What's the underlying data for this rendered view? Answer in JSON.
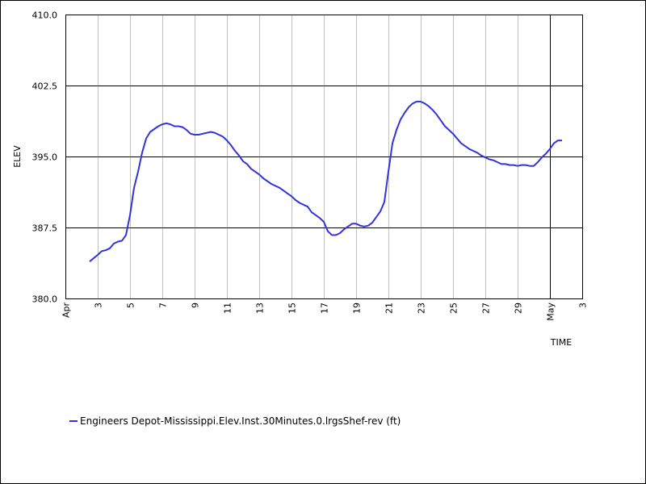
{
  "chart_data": {
    "type": "line",
    "xlabel": "TIME",
    "ylabel": "ELEV",
    "ylim": [
      380.0,
      410.0
    ],
    "xlim": [
      "2024-04-01",
      "2024-05-03"
    ],
    "y_ticks": [
      "380.0",
      "387.5",
      "395.0",
      "402.5",
      "410.0"
    ],
    "x_ticks": [
      {
        "date": "2024-04-01",
        "label": "Apr",
        "major": true
      },
      {
        "date": "2024-04-03",
        "label": "3",
        "major": false
      },
      {
        "date": "2024-04-05",
        "label": "5",
        "major": false
      },
      {
        "date": "2024-04-07",
        "label": "7",
        "major": false
      },
      {
        "date": "2024-04-09",
        "label": "9",
        "major": false
      },
      {
        "date": "2024-04-11",
        "label": "11",
        "major": false
      },
      {
        "date": "2024-04-13",
        "label": "13",
        "major": false
      },
      {
        "date": "2024-04-15",
        "label": "15",
        "major": false
      },
      {
        "date": "2024-04-17",
        "label": "17",
        "major": false
      },
      {
        "date": "2024-04-19",
        "label": "19",
        "major": false
      },
      {
        "date": "2024-04-21",
        "label": "21",
        "major": false
      },
      {
        "date": "2024-04-23",
        "label": "23",
        "major": false
      },
      {
        "date": "2024-04-25",
        "label": "25",
        "major": false
      },
      {
        "date": "2024-04-27",
        "label": "27",
        "major": false
      },
      {
        "date": "2024-04-29",
        "label": "29",
        "major": false
      },
      {
        "date": "2024-05-01",
        "label": "May",
        "major": true
      },
      {
        "date": "2024-05-03",
        "label": "3",
        "major": false
      }
    ],
    "grid": true,
    "legend_position": "bottom-left",
    "series": [
      {
        "name": "Engineers Depot-Mississippi.Elev.Inst.30Minutes.0.lrgsShef-rev (ft)",
        "color": "#3333dd",
        "points": [
          [
            "2024-04-02T12:00",
            383.9
          ],
          [
            "2024-04-03T00:00",
            384.6
          ],
          [
            "2024-04-03T06:00",
            385.0
          ],
          [
            "2024-04-03T12:00",
            385.1
          ],
          [
            "2024-04-03T18:00",
            385.3
          ],
          [
            "2024-04-04T00:00",
            385.8
          ],
          [
            "2024-04-04T06:00",
            386.0
          ],
          [
            "2024-04-04T12:00",
            386.1
          ],
          [
            "2024-04-04T18:00",
            386.7
          ],
          [
            "2024-04-05T00:00",
            388.8
          ],
          [
            "2024-04-05T06:00",
            391.7
          ],
          [
            "2024-04-05T12:00",
            393.4
          ],
          [
            "2024-04-05T18:00",
            395.4
          ],
          [
            "2024-04-06T00:00",
            396.9
          ],
          [
            "2024-04-06T06:00",
            397.6
          ],
          [
            "2024-04-06T12:00",
            397.9
          ],
          [
            "2024-04-06T18:00",
            398.2
          ],
          [
            "2024-04-07T00:00",
            398.4
          ],
          [
            "2024-04-07T06:00",
            398.5
          ],
          [
            "2024-04-07T12:00",
            398.4
          ],
          [
            "2024-04-07T18:00",
            398.2
          ],
          [
            "2024-04-08T00:00",
            398.2
          ],
          [
            "2024-04-08T06:00",
            398.1
          ],
          [
            "2024-04-08T12:00",
            397.8
          ],
          [
            "2024-04-08T18:00",
            397.4
          ],
          [
            "2024-04-09T00:00",
            397.3
          ],
          [
            "2024-04-09T06:00",
            397.3
          ],
          [
            "2024-04-09T12:00",
            397.4
          ],
          [
            "2024-04-09T18:00",
            397.5
          ],
          [
            "2024-04-10T00:00",
            397.6
          ],
          [
            "2024-04-10T06:00",
            397.5
          ],
          [
            "2024-04-10T12:00",
            397.3
          ],
          [
            "2024-04-10T18:00",
            397.1
          ],
          [
            "2024-04-11T00:00",
            396.7
          ],
          [
            "2024-04-11T06:00",
            396.2
          ],
          [
            "2024-04-11T12:00",
            395.6
          ],
          [
            "2024-04-11T18:00",
            395.1
          ],
          [
            "2024-04-12T00:00",
            394.5
          ],
          [
            "2024-04-12T06:00",
            394.2
          ],
          [
            "2024-04-12T12:00",
            393.7
          ],
          [
            "2024-04-12T18:00",
            393.4
          ],
          [
            "2024-04-13T00:00",
            393.1
          ],
          [
            "2024-04-13T06:00",
            392.7
          ],
          [
            "2024-04-13T12:00",
            392.4
          ],
          [
            "2024-04-13T18:00",
            392.1
          ],
          [
            "2024-04-14T00:00",
            391.9
          ],
          [
            "2024-04-14T06:00",
            391.7
          ],
          [
            "2024-04-14T12:00",
            391.4
          ],
          [
            "2024-04-14T18:00",
            391.1
          ],
          [
            "2024-04-15T00:00",
            390.8
          ],
          [
            "2024-04-15T06:00",
            390.4
          ],
          [
            "2024-04-15T12:00",
            390.1
          ],
          [
            "2024-04-15T18:00",
            389.9
          ],
          [
            "2024-04-16T00:00",
            389.7
          ],
          [
            "2024-04-16T06:00",
            389.1
          ],
          [
            "2024-04-16T12:00",
            388.8
          ],
          [
            "2024-04-16T18:00",
            388.5
          ],
          [
            "2024-04-17T00:00",
            388.1
          ],
          [
            "2024-04-17T06:00",
            387.1
          ],
          [
            "2024-04-17T12:00",
            386.7
          ],
          [
            "2024-04-17T18:00",
            386.7
          ],
          [
            "2024-04-18T00:00",
            386.9
          ],
          [
            "2024-04-18T06:00",
            387.3
          ],
          [
            "2024-04-18T12:00",
            387.6
          ],
          [
            "2024-04-18T18:00",
            387.9
          ],
          [
            "2024-04-19T00:00",
            387.9
          ],
          [
            "2024-04-19T06:00",
            387.7
          ],
          [
            "2024-04-19T12:00",
            387.6
          ],
          [
            "2024-04-19T18:00",
            387.7
          ],
          [
            "2024-04-20T00:00",
            388.0
          ],
          [
            "2024-04-20T06:00",
            388.6
          ],
          [
            "2024-04-20T12:00",
            389.2
          ],
          [
            "2024-04-20T18:00",
            390.2
          ],
          [
            "2024-04-21T00:00",
            393.4
          ],
          [
            "2024-04-21T06:00",
            396.4
          ],
          [
            "2024-04-21T12:00",
            397.8
          ],
          [
            "2024-04-21T18:00",
            398.9
          ],
          [
            "2024-04-22T00:00",
            399.6
          ],
          [
            "2024-04-22T06:00",
            400.2
          ],
          [
            "2024-04-22T12:00",
            400.6
          ],
          [
            "2024-04-22T18:00",
            400.8
          ],
          [
            "2024-04-23T00:00",
            400.8
          ],
          [
            "2024-04-23T06:00",
            400.6
          ],
          [
            "2024-04-23T12:00",
            400.3
          ],
          [
            "2024-04-23T18:00",
            399.9
          ],
          [
            "2024-04-24T00:00",
            399.4
          ],
          [
            "2024-04-24T06:00",
            398.8
          ],
          [
            "2024-04-24T12:00",
            398.2
          ],
          [
            "2024-04-24T18:00",
            397.8
          ],
          [
            "2024-04-25T00:00",
            397.4
          ],
          [
            "2024-04-25T06:00",
            396.9
          ],
          [
            "2024-04-25T12:00",
            396.4
          ],
          [
            "2024-04-25T18:00",
            396.1
          ],
          [
            "2024-04-26T00:00",
            395.8
          ],
          [
            "2024-04-26T06:00",
            395.6
          ],
          [
            "2024-04-26T12:00",
            395.4
          ],
          [
            "2024-04-26T18:00",
            395.1
          ],
          [
            "2024-04-27T00:00",
            394.9
          ],
          [
            "2024-04-27T06:00",
            394.7
          ],
          [
            "2024-04-27T12:00",
            394.6
          ],
          [
            "2024-04-27T18:00",
            394.4
          ],
          [
            "2024-04-28T00:00",
            394.2
          ],
          [
            "2024-04-28T06:00",
            394.2
          ],
          [
            "2024-04-28T12:00",
            394.1
          ],
          [
            "2024-04-28T18:00",
            394.1
          ],
          [
            "2024-04-29T00:00",
            394.0
          ],
          [
            "2024-04-29T06:00",
            394.1
          ],
          [
            "2024-04-29T12:00",
            394.1
          ],
          [
            "2024-04-29T18:00",
            394.0
          ],
          [
            "2024-04-30T00:00",
            394.0
          ],
          [
            "2024-04-30T06:00",
            394.4
          ],
          [
            "2024-04-30T12:00",
            394.9
          ],
          [
            "2024-04-30T18:00",
            395.3
          ],
          [
            "2024-05-01T00:00",
            395.8
          ],
          [
            "2024-05-01T06:00",
            396.4
          ],
          [
            "2024-05-01T12:00",
            396.7
          ],
          [
            "2024-05-01T18:00",
            396.7
          ]
        ]
      }
    ]
  }
}
